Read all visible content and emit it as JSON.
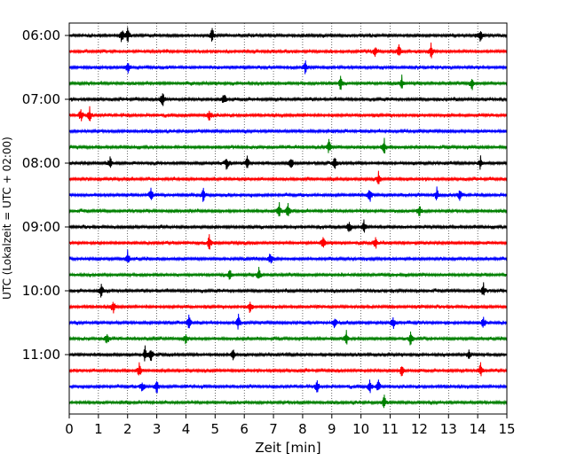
{
  "chart_data": {
    "type": "line",
    "xlabel": "Zeit  [min]",
    "ylabel": "UTC (Lokalzeit = UTC + 02:00)",
    "xlim": [
      0,
      15
    ],
    "x_ticks": [
      "0",
      "1",
      "2",
      "3",
      "4",
      "5",
      "6",
      "7",
      "8",
      "9",
      "10",
      "11",
      "12",
      "13",
      "14",
      "15"
    ],
    "y_ticks": [
      "06:00",
      "07:00",
      "08:00",
      "09:00",
      "10:00",
      "11:00"
    ],
    "grid": "vertical dotted at each minute",
    "trace_colors": [
      "#000000",
      "#ff0000",
      "#0000ff",
      "#008000"
    ],
    "traces": [
      {
        "start": "06:00",
        "events_min": [
          1.8,
          2.0,
          4.9,
          14.1
        ]
      },
      {
        "start": "06:15",
        "events_min": [
          10.5,
          11.3,
          12.4
        ]
      },
      {
        "start": "06:30",
        "events_min": [
          2.0,
          8.1
        ]
      },
      {
        "start": "06:45",
        "events_min": [
          9.3,
          11.4,
          13.8
        ]
      },
      {
        "start": "07:00",
        "events_min": [
          3.2,
          5.3
        ]
      },
      {
        "start": "07:15",
        "events_min": [
          0.4,
          0.7,
          4.8
        ]
      },
      {
        "start": "07:30",
        "events_min": []
      },
      {
        "start": "07:45",
        "events_min": [
          8.9,
          10.8
        ]
      },
      {
        "start": "08:00",
        "events_min": [
          1.4,
          5.4,
          6.1,
          7.6,
          9.1,
          14.1
        ]
      },
      {
        "start": "08:15",
        "events_min": [
          10.6
        ]
      },
      {
        "start": "08:30",
        "events_min": [
          2.8,
          4.6,
          10.3,
          12.6,
          13.4
        ]
      },
      {
        "start": "08:45",
        "events_min": [
          7.2,
          7.5,
          12.0
        ]
      },
      {
        "start": "09:00",
        "events_min": [
          9.6,
          10.1
        ]
      },
      {
        "start": "09:15",
        "events_min": [
          4.8,
          8.7,
          10.5
        ]
      },
      {
        "start": "09:30",
        "events_min": [
          2.0,
          6.9
        ]
      },
      {
        "start": "09:45",
        "events_min": [
          5.5,
          6.5
        ]
      },
      {
        "start": "10:00",
        "events_min": [
          1.1,
          14.2
        ]
      },
      {
        "start": "10:15",
        "events_min": [
          1.5,
          6.2
        ]
      },
      {
        "start": "10:30",
        "events_min": [
          4.1,
          5.8,
          9.1,
          11.1,
          14.2
        ]
      },
      {
        "start": "10:45",
        "events_min": [
          1.3,
          4.0,
          9.5,
          11.7
        ]
      },
      {
        "start": "11:00",
        "events_min": [
          2.6,
          2.8,
          5.6,
          13.7
        ]
      },
      {
        "start": "11:15",
        "events_min": [
          2.4,
          11.4,
          14.1
        ]
      },
      {
        "start": "11:30",
        "events_min": [
          2.5,
          3.0,
          8.5,
          10.3,
          10.6
        ]
      },
      {
        "start": "11:45",
        "events_min": [
          10.8
        ]
      }
    ]
  }
}
